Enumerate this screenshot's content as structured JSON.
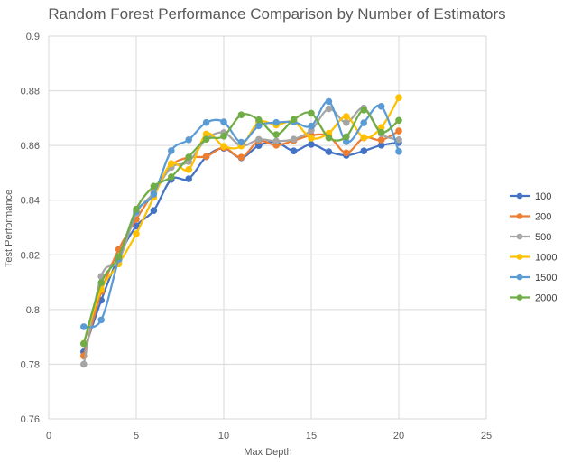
{
  "chart_data": {
    "type": "line",
    "title": "Random Forest Performance Comparison by Number of Estimators",
    "xlabel": "Max Depth",
    "ylabel": "Test Performance",
    "xlim": [
      0,
      25
    ],
    "ylim": [
      0.76,
      0.9
    ],
    "x_ticks": [
      0,
      5,
      10,
      15,
      20,
      25
    ],
    "y_ticks": [
      0.76,
      0.78,
      0.8,
      0.82,
      0.84,
      0.86,
      0.88,
      0.9
    ],
    "y_tick_labels": [
      "0.76",
      "0.78",
      "0.8",
      "0.82",
      "0.84",
      "0.86",
      "0.88",
      "0.9"
    ],
    "grid": true,
    "smooth": true,
    "legend_position": "right",
    "x": [
      2,
      3,
      4,
      5,
      6,
      7,
      8,
      9,
      10,
      11,
      12,
      13,
      14,
      15,
      16,
      17,
      18,
      19,
      20
    ],
    "series": [
      {
        "name": "100",
        "color": "#4472C4",
        "values": [
          0.7845,
          0.8034,
          0.8193,
          0.8305,
          0.8362,
          0.8476,
          0.8478,
          0.8559,
          0.859,
          0.8555,
          0.86,
          0.8613,
          0.858,
          0.8604,
          0.8577,
          0.8564,
          0.858,
          0.8601,
          0.8611
        ]
      },
      {
        "name": "200",
        "color": "#ED7D31",
        "values": [
          0.783,
          0.8066,
          0.822,
          0.833,
          0.843,
          0.8527,
          0.8556,
          0.856,
          0.8592,
          0.8557,
          0.8616,
          0.8601,
          0.8618,
          0.8637,
          0.8634,
          0.8573,
          0.8628,
          0.862,
          0.8653
        ]
      },
      {
        "name": "500",
        "color": "#A5A5A5",
        "values": [
          0.78,
          0.8121,
          0.8178,
          0.8352,
          0.8427,
          0.852,
          0.8541,
          0.8623,
          0.8647,
          0.8599,
          0.8622,
          0.8616,
          0.8623,
          0.8656,
          0.8734,
          0.8684,
          0.8737,
          0.8643,
          0.8621
        ]
      },
      {
        "name": "1000",
        "color": "#FFC000",
        "values": [
          0.7876,
          0.8073,
          0.8167,
          0.8277,
          0.8411,
          0.8534,
          0.8512,
          0.8642,
          0.8597,
          0.8598,
          0.8685,
          0.8675,
          0.8687,
          0.8627,
          0.8645,
          0.8706,
          0.8629,
          0.8666,
          0.8775
        ]
      },
      {
        "name": "1500",
        "color": "#5B9BD5",
        "values": [
          0.7937,
          0.7962,
          0.8184,
          0.8358,
          0.8422,
          0.8581,
          0.8621,
          0.8684,
          0.8686,
          0.8612,
          0.8672,
          0.8684,
          0.8686,
          0.8671,
          0.8761,
          0.8614,
          0.8683,
          0.8743,
          0.8578
        ]
      },
      {
        "name": "2000",
        "color": "#70AD47",
        "values": [
          0.7875,
          0.8098,
          0.8194,
          0.8367,
          0.8451,
          0.8485,
          0.8558,
          0.8623,
          0.8634,
          0.8712,
          0.8694,
          0.864,
          0.8695,
          0.8718,
          0.8628,
          0.8632,
          0.873,
          0.8648,
          0.8692
        ]
      }
    ]
  }
}
